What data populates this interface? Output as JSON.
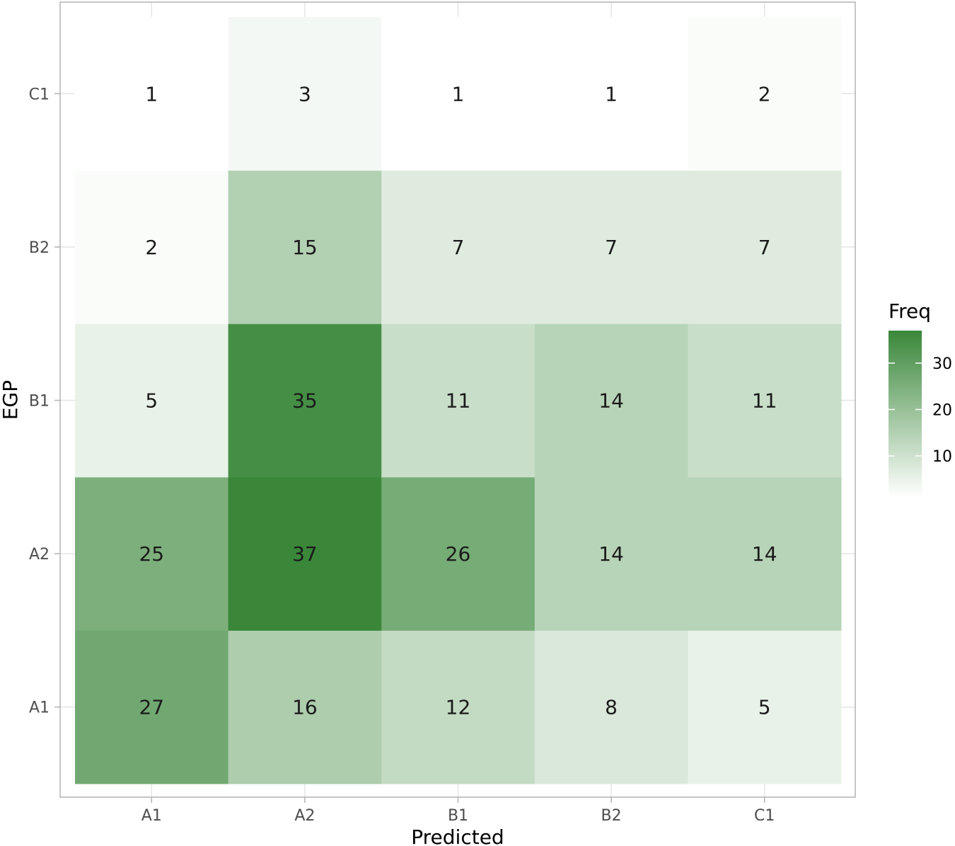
{
  "chart_data": {
    "type": "heatmap",
    "xlabel": "Predicted",
    "ylabel": "EGP",
    "x_categories": [
      "A1",
      "A2",
      "B1",
      "B2",
      "C1"
    ],
    "y_categories": [
      "A1",
      "A2",
      "B1",
      "B2",
      "C1"
    ],
    "values": [
      [
        27,
        16,
        12,
        8,
        5
      ],
      [
        25,
        37,
        26,
        14,
        14
      ],
      [
        5,
        35,
        11,
        14,
        11
      ],
      [
        2,
        15,
        7,
        7,
        7
      ],
      [
        1,
        3,
        1,
        1,
        2
      ]
    ],
    "value_layout": "values[row][col]: row follows y_categories, col follows x_categories",
    "legend": {
      "title": "Freq",
      "ticks": [
        10,
        20,
        30
      ],
      "range": [
        1,
        37
      ],
      "placement": "right"
    },
    "colors": {
      "low": "#ffffff",
      "high": "#3a873a"
    },
    "grid": true
  }
}
